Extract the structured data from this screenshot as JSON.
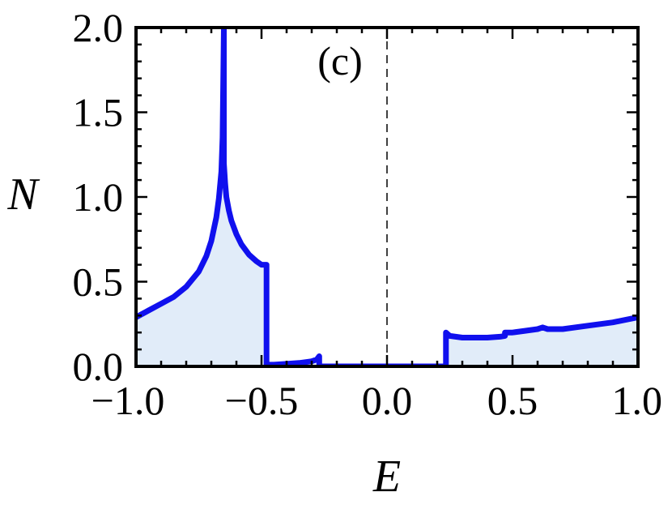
{
  "chart_data": {
    "type": "area",
    "panel_label": "(c)",
    "xlabel": "E",
    "ylabel": "N",
    "xlim": [
      -1.0,
      1.0
    ],
    "ylim": [
      0.0,
      2.0
    ],
    "xticks": [
      -1.0,
      -0.5,
      0.0,
      0.5,
      1.0
    ],
    "xtick_labels": [
      "−1.0",
      "−0.5",
      "0.0",
      "0.5",
      "1.0"
    ],
    "yticks": [
      0.0,
      0.5,
      1.0,
      1.5,
      2.0
    ],
    "ytick_labels": [
      "0.0",
      "0.5",
      "1.0",
      "1.5",
      "2.0"
    ],
    "reference_line": {
      "x": 0.0,
      "style": "dashed"
    },
    "line_color": "#1010ee",
    "fill_color": "#e1ecf9",
    "grid": false,
    "series": [
      {
        "x": [
          -1.0,
          -0.95,
          -0.9,
          -0.85,
          -0.8,
          -0.75,
          -0.72,
          -0.7,
          -0.68,
          -0.67,
          -0.66,
          -0.655,
          -0.65,
          -0.65,
          -0.65,
          -0.645,
          -0.64,
          -0.63,
          -0.62,
          -0.6,
          -0.58,
          -0.55,
          -0.52,
          -0.5,
          -0.48,
          -0.48,
          -0.48,
          -0.45,
          -0.4,
          -0.35,
          -0.3,
          -0.28,
          -0.27,
          -0.27,
          -0.2,
          -0.1,
          0.0,
          0.1,
          0.2,
          0.235,
          0.235,
          0.25,
          0.3,
          0.35,
          0.4,
          0.45,
          0.47,
          0.47,
          0.5,
          0.55,
          0.6,
          0.62,
          0.64,
          0.7,
          0.8,
          0.9,
          1.0
        ],
        "y": [
          0.29,
          0.33,
          0.37,
          0.41,
          0.47,
          0.56,
          0.65,
          0.74,
          0.88,
          0.99,
          1.15,
          1.35,
          2.0,
          2.0,
          1.2,
          1.08,
          1.0,
          0.92,
          0.86,
          0.78,
          0.72,
          0.66,
          0.62,
          0.6,
          0.6,
          0.0,
          0.01,
          0.01,
          0.015,
          0.02,
          0.03,
          0.04,
          0.06,
          0.0,
          0.0,
          0.0,
          0.0,
          0.0,
          0.0,
          0.0,
          0.2,
          0.18,
          0.17,
          0.17,
          0.17,
          0.175,
          0.18,
          0.2,
          0.2,
          0.21,
          0.22,
          0.23,
          0.22,
          0.22,
          0.24,
          0.26,
          0.29
        ]
      }
    ]
  }
}
